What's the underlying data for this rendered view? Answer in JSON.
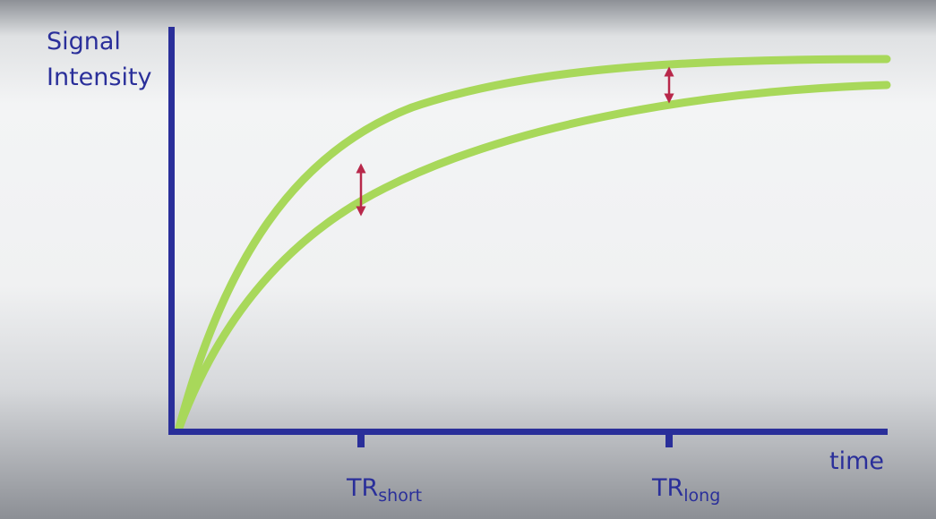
{
  "diagram": {
    "y_axis_label_line1": "Signal",
    "y_axis_label_line2": "Intensity",
    "x_axis_label": "time",
    "markers": [
      {
        "base": "TR",
        "subscript": "short"
      },
      {
        "base": "TR",
        "subscript": "long"
      }
    ]
  },
  "colors": {
    "axis": "#2a2f9a",
    "curve": "#a8d85a",
    "arrow": "#b8284a",
    "background_top": "#f4f5f6",
    "background_bottom": "#8f9298"
  }
}
